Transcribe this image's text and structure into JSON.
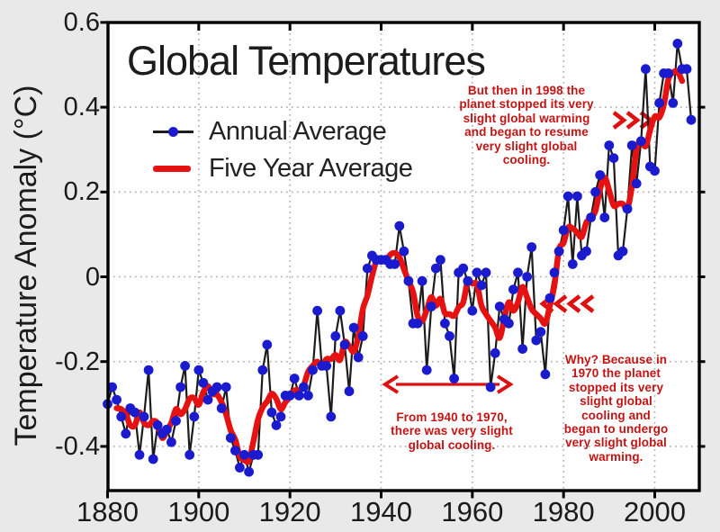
{
  "title": "Global Temperatures",
  "y_axis": {
    "label": "Temperature Anomaly (°C)",
    "tick_labels": [
      "0.6",
      "0.4",
      "0.2",
      "0",
      "-0.2",
      "-0.4"
    ],
    "tick_values": [
      0.6,
      0.4,
      0.2,
      0,
      -0.2,
      -0.4
    ]
  },
  "x_axis": {
    "tick_labels": [
      "1880",
      "1900",
      "1920",
      "1940",
      "1960",
      "1980",
      "2000"
    ],
    "tick_values": [
      1880,
      1900,
      1920,
      1940,
      1960,
      1980,
      2000
    ]
  },
  "legend": {
    "annual_label": "Annual Average",
    "five_year_label": "Five Year Average"
  },
  "annotations": [
    {
      "id": "ann-1998",
      "lines": [
        "But then in 1998 the",
        "planet stopped its very",
        "slight global warming",
        "and began to resume",
        "very slight global",
        "cooling."
      ],
      "arrow": "three red chevrons pointing right at the five-year line near 1998"
    },
    {
      "id": "ann-1940",
      "lines": [
        "From 1940 to 1970,",
        "there was very slight",
        "global cooling."
      ],
      "arrow": "red horizontal bracket spanning 1940-1970"
    },
    {
      "id": "ann-why",
      "lines": [
        "Why? Because in",
        "1970 the planet",
        "stopped its very",
        "slight global",
        "cooling and",
        "began to undergo",
        "very slight global",
        "warming."
      ],
      "arrow": "four red chevrons pointing left at the five-year line near 1976"
    }
  ],
  "colors": {
    "background": "#e9e9e9",
    "plot_background": "#ffffff",
    "frame": "#000000",
    "grid": "#ababab",
    "annual_line": "#1c1c1c",
    "annual_marker": "#1a1ace",
    "five_year_line": "#e61212",
    "annotation_text": "#c41414",
    "annotation_arrows": "#dd1111",
    "title_text": "#1c1c1c",
    "tick_text": "#1a1a1a"
  },
  "chart_data": {
    "type": "line",
    "title": "Global Temperatures",
    "xlabel": "",
    "ylabel": "Temperature Anomaly (°C)",
    "xlim": [
      1880,
      2010
    ],
    "ylim": [
      -0.5,
      0.6
    ],
    "x_ticks": [
      1880,
      1900,
      1920,
      1940,
      1960,
      1980,
      2000
    ],
    "y_ticks": [
      0.6,
      0.4,
      0.2,
      0,
      -0.2,
      -0.4
    ],
    "grid": "dotted gridlines at major ticks",
    "legend_position": "upper left inside plot",
    "series": [
      {
        "name": "Annual Average",
        "style": "thin black line with blue circular markers",
        "start_year": 1880,
        "end_year": 2008,
        "values": [
          -0.3,
          -0.26,
          -0.29,
          -0.33,
          -0.37,
          -0.31,
          -0.32,
          -0.42,
          -0.33,
          -0.22,
          -0.43,
          -0.35,
          -0.37,
          -0.36,
          -0.39,
          -0.34,
          -0.26,
          -0.21,
          -0.42,
          -0.33,
          -0.22,
          -0.25,
          -0.29,
          -0.27,
          -0.26,
          -0.31,
          -0.26,
          -0.38,
          -0.41,
          -0.45,
          -0.42,
          -0.46,
          -0.42,
          -0.42,
          -0.22,
          -0.16,
          -0.32,
          -0.35,
          -0.33,
          -0.28,
          -0.28,
          -0.24,
          -0.28,
          -0.26,
          -0.28,
          -0.22,
          -0.08,
          -0.21,
          -0.21,
          -0.33,
          -0.14,
          -0.08,
          -0.16,
          -0.27,
          -0.12,
          -0.19,
          -0.14,
          0.02,
          0.05,
          0.04,
          0.04,
          0.04,
          0.03,
          0.03,
          0.12,
          0.06,
          -0.01,
          -0.11,
          -0.11,
          -0.01,
          -0.22,
          -0.07,
          0.02,
          0.04,
          -0.11,
          -0.14,
          -0.24,
          0.01,
          0.02,
          -0.01,
          -0.08,
          0.01,
          -0.02,
          0.01,
          -0.26,
          -0.18,
          -0.07,
          -0.1,
          -0.11,
          -0.03,
          0.01,
          -0.17,
          0.0,
          0.07,
          -0.15,
          -0.13,
          -0.23,
          -0.05,
          0.01,
          0.06,
          0.11,
          0.19,
          0.03,
          0.19,
          0.05,
          0.06,
          0.14,
          0.2,
          0.24,
          0.14,
          0.31,
          0.28,
          0.05,
          0.06,
          0.16,
          0.31,
          0.22,
          0.32,
          0.49,
          0.26,
          0.25,
          0.41,
          0.48,
          0.48,
          0.41,
          0.55,
          0.49,
          0.49,
          0.37
        ]
      },
      {
        "name": "Five Year Average",
        "style": "thick red smooth line",
        "derivation": "5-year centered moving average of Annual Average, plotted 1882-2006"
      }
    ]
  }
}
